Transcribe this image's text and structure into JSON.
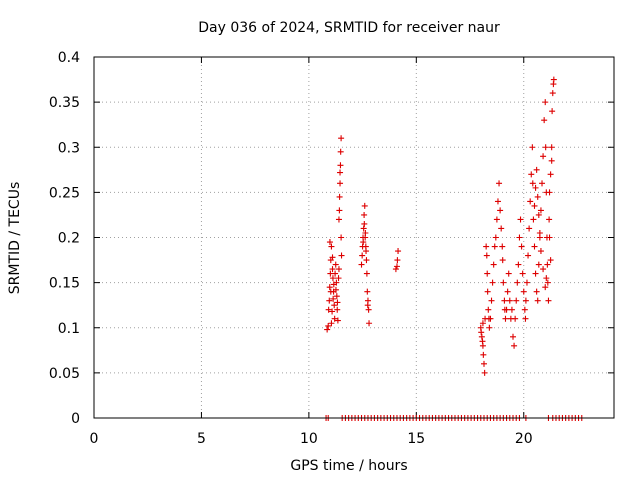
{
  "chart_data": {
    "type": "scatter",
    "title": "Day 036 of 2024, SRMTID for receiver naur",
    "xlabel": "GPS time / hours",
    "ylabel": "SRMTID / TECUs",
    "xlim": [
      0,
      24.2
    ],
    "ylim": [
      0,
      0.4
    ],
    "xticks": [
      0,
      5,
      10,
      15,
      20
    ],
    "xtick_labels": [
      "0",
      "5",
      "10",
      "15",
      "20"
    ],
    "yticks": [
      0,
      0.05,
      0.1,
      0.15,
      0.2,
      0.25,
      0.3,
      0.35,
      0.4
    ],
    "ytick_labels": [
      "0",
      "0.05",
      "0.1",
      "0.15",
      "0.2",
      "0.25",
      "0.3",
      "0.35",
      "0.4"
    ],
    "grid": true,
    "marker": "plus",
    "color": "#dd0000",
    "series": [
      {
        "name": "SRMTID",
        "points": [
          [
            10.85,
            0.098
          ],
          [
            10.9,
            0.102
          ],
          [
            10.92,
            0.12
          ],
          [
            10.95,
            0.13
          ],
          [
            10.97,
            0.145
          ],
          [
            11.0,
            0.16
          ],
          [
            11.02,
            0.175
          ],
          [
            11.05,
            0.19
          ],
          [
            10.98,
            0.195
          ],
          [
            11.1,
            0.165
          ],
          [
            11.12,
            0.155
          ],
          [
            11.15,
            0.14
          ],
          [
            11.18,
            0.125
          ],
          [
            11.2,
            0.11
          ],
          [
            11.05,
            0.105
          ],
          [
            11.08,
            0.118
          ],
          [
            11.13,
            0.132
          ],
          [
            11.16,
            0.148
          ],
          [
            11.22,
            0.16
          ],
          [
            11.25,
            0.17
          ],
          [
            11.28,
            0.15
          ],
          [
            11.3,
            0.135
          ],
          [
            11.32,
            0.12
          ],
          [
            11.35,
            0.108
          ],
          [
            11.26,
            0.142
          ],
          [
            11.33,
            0.128
          ],
          [
            11.38,
            0.155
          ],
          [
            11.4,
            0.165
          ],
          [
            11.02,
            0.14
          ],
          [
            11.1,
            0.178
          ],
          [
            11.4,
            0.22
          ],
          [
            11.42,
            0.23
          ],
          [
            11.45,
            0.26
          ],
          [
            11.47,
            0.28
          ],
          [
            11.48,
            0.295
          ],
          [
            11.5,
            0.31
          ],
          [
            11.45,
            0.272
          ],
          [
            11.43,
            0.245
          ],
          [
            11.5,
            0.2
          ],
          [
            11.52,
            0.18
          ],
          [
            12.45,
            0.17
          ],
          [
            12.48,
            0.18
          ],
          [
            12.5,
            0.19
          ],
          [
            12.52,
            0.2
          ],
          [
            12.55,
            0.21
          ],
          [
            12.57,
            0.225
          ],
          [
            12.6,
            0.235
          ],
          [
            12.62,
            0.2
          ],
          [
            12.65,
            0.19
          ],
          [
            12.7,
            0.16
          ],
          [
            12.72,
            0.14
          ],
          [
            12.75,
            0.13
          ],
          [
            12.78,
            0.12
          ],
          [
            12.8,
            0.105
          ],
          [
            12.58,
            0.215
          ],
          [
            12.66,
            0.185
          ],
          [
            12.68,
            0.175
          ],
          [
            12.53,
            0.195
          ],
          [
            12.63,
            0.205
          ],
          [
            12.74,
            0.125
          ],
          [
            14.05,
            0.165
          ],
          [
            14.1,
            0.168
          ],
          [
            14.12,
            0.175
          ],
          [
            14.15,
            0.185
          ],
          [
            18.0,
            0.1
          ],
          [
            18.02,
            0.095
          ],
          [
            18.05,
            0.09
          ],
          [
            18.08,
            0.085
          ],
          [
            18.1,
            0.08
          ],
          [
            18.12,
            0.07
          ],
          [
            18.15,
            0.06
          ],
          [
            18.18,
            0.05
          ],
          [
            18.1,
            0.105
          ],
          [
            18.2,
            0.11
          ],
          [
            18.25,
            0.19
          ],
          [
            18.28,
            0.18
          ],
          [
            18.3,
            0.16
          ],
          [
            18.32,
            0.14
          ],
          [
            18.35,
            0.12
          ],
          [
            18.38,
            0.11
          ],
          [
            18.4,
            0.1
          ],
          [
            18.45,
            0.11
          ],
          [
            18.5,
            0.13
          ],
          [
            18.55,
            0.15
          ],
          [
            18.6,
            0.17
          ],
          [
            18.65,
            0.19
          ],
          [
            18.7,
            0.2
          ],
          [
            18.75,
            0.22
          ],
          [
            18.8,
            0.24
          ],
          [
            18.85,
            0.26
          ],
          [
            18.9,
            0.23
          ],
          [
            18.95,
            0.21
          ],
          [
            19.0,
            0.19
          ],
          [
            19.02,
            0.175
          ],
          [
            19.05,
            0.15
          ],
          [
            19.1,
            0.13
          ],
          [
            19.12,
            0.12
          ],
          [
            19.15,
            0.11
          ],
          [
            19.2,
            0.12
          ],
          [
            19.25,
            0.14
          ],
          [
            19.3,
            0.16
          ],
          [
            19.35,
            0.13
          ],
          [
            19.4,
            0.11
          ],
          [
            19.45,
            0.12
          ],
          [
            19.5,
            0.09
          ],
          [
            19.55,
            0.08
          ],
          [
            19.6,
            0.11
          ],
          [
            19.65,
            0.13
          ],
          [
            19.7,
            0.15
          ],
          [
            19.75,
            0.17
          ],
          [
            19.8,
            0.2
          ],
          [
            19.85,
            0.22
          ],
          [
            19.9,
            0.19
          ],
          [
            19.95,
            0.16
          ],
          [
            20.0,
            0.14
          ],
          [
            20.05,
            0.12
          ],
          [
            20.08,
            0.11
          ],
          [
            20.1,
            0.13
          ],
          [
            20.15,
            0.15
          ],
          [
            20.2,
            0.18
          ],
          [
            20.25,
            0.21
          ],
          [
            20.3,
            0.24
          ],
          [
            20.35,
            0.27
          ],
          [
            20.4,
            0.3
          ],
          [
            20.42,
            0.26
          ],
          [
            20.45,
            0.22
          ],
          [
            20.5,
            0.19
          ],
          [
            20.55,
            0.16
          ],
          [
            20.6,
            0.14
          ],
          [
            20.65,
            0.13
          ],
          [
            20.7,
            0.17
          ],
          [
            20.75,
            0.2
          ],
          [
            20.8,
            0.23
          ],
          [
            20.85,
            0.26
          ],
          [
            20.9,
            0.29
          ],
          [
            20.95,
            0.33
          ],
          [
            21.0,
            0.35
          ],
          [
            21.02,
            0.3
          ],
          [
            21.05,
            0.25
          ],
          [
            21.08,
            0.2
          ],
          [
            21.1,
            0.17
          ],
          [
            21.12,
            0.15
          ],
          [
            21.15,
            0.13
          ],
          [
            21.18,
            0.22
          ],
          [
            21.2,
            0.25
          ],
          [
            21.25,
            0.27
          ],
          [
            21.3,
            0.3
          ],
          [
            21.32,
            0.34
          ],
          [
            21.35,
            0.36
          ],
          [
            21.38,
            0.37
          ],
          [
            21.4,
            0.375
          ],
          [
            21.3,
            0.285
          ],
          [
            21.2,
            0.2
          ],
          [
            21.25,
            0.175
          ],
          [
            20.5,
            0.235
          ],
          [
            20.55,
            0.255
          ],
          [
            20.6,
            0.275
          ],
          [
            20.65,
            0.245
          ],
          [
            20.7,
            0.225
          ],
          [
            20.75,
            0.205
          ],
          [
            20.8,
            0.185
          ],
          [
            20.9,
            0.165
          ],
          [
            21.0,
            0.145
          ],
          [
            21.05,
            0.155
          ],
          [
            10.8,
            0
          ],
          [
            10.9,
            0
          ],
          [
            11.55,
            0
          ],
          [
            11.7,
            0
          ],
          [
            11.85,
            0
          ],
          [
            12.0,
            0
          ],
          [
            12.15,
            0
          ],
          [
            12.3,
            0
          ],
          [
            12.45,
            0
          ],
          [
            12.6,
            0
          ],
          [
            12.75,
            0
          ],
          [
            12.9,
            0
          ],
          [
            13.05,
            0
          ],
          [
            13.2,
            0
          ],
          [
            13.35,
            0
          ],
          [
            13.5,
            0
          ],
          [
            13.65,
            0
          ],
          [
            13.8,
            0
          ],
          [
            13.95,
            0
          ],
          [
            14.1,
            0
          ],
          [
            14.25,
            0
          ],
          [
            14.4,
            0
          ],
          [
            14.55,
            0
          ],
          [
            14.7,
            0
          ],
          [
            14.85,
            0
          ],
          [
            15.0,
            0
          ],
          [
            15.15,
            0
          ],
          [
            15.3,
            0
          ],
          [
            15.45,
            0
          ],
          [
            15.6,
            0
          ],
          [
            15.75,
            0
          ],
          [
            15.9,
            0
          ],
          [
            16.05,
            0
          ],
          [
            16.2,
            0
          ],
          [
            16.35,
            0
          ],
          [
            16.5,
            0
          ],
          [
            16.65,
            0
          ],
          [
            16.8,
            0
          ],
          [
            16.95,
            0
          ],
          [
            17.1,
            0
          ],
          [
            17.25,
            0
          ],
          [
            17.4,
            0
          ],
          [
            17.55,
            0
          ],
          [
            17.7,
            0
          ],
          [
            17.85,
            0
          ],
          [
            18.0,
            0
          ],
          [
            18.15,
            0
          ],
          [
            18.3,
            0
          ],
          [
            18.45,
            0
          ],
          [
            18.6,
            0
          ],
          [
            18.75,
            0
          ],
          [
            18.9,
            0
          ],
          [
            19.05,
            0
          ],
          [
            19.2,
            0
          ],
          [
            19.35,
            0
          ],
          [
            19.5,
            0
          ],
          [
            19.65,
            0
          ],
          [
            19.8,
            0
          ],
          [
            20.1,
            0
          ],
          [
            21.15,
            0
          ],
          [
            21.35,
            0
          ],
          [
            21.5,
            0
          ],
          [
            21.65,
            0
          ],
          [
            21.8,
            0
          ],
          [
            21.95,
            0
          ],
          [
            22.1,
            0
          ],
          [
            22.25,
            0
          ],
          [
            22.4,
            0
          ],
          [
            22.55,
            0
          ],
          [
            22.7,
            0
          ]
        ]
      }
    ]
  }
}
